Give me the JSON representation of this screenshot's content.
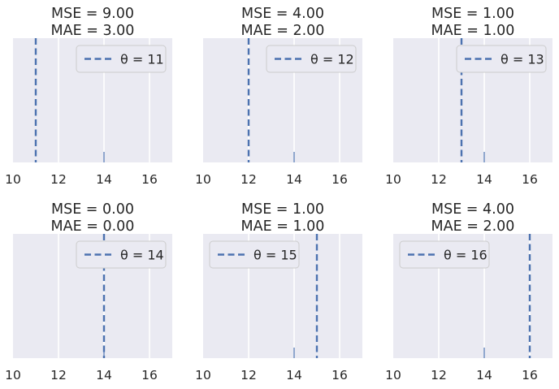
{
  "chart_data": [
    {
      "type": "line",
      "title_lines": [
        "MSE = 9.00",
        "MAE = 3.00"
      ],
      "theta": 11,
      "legend_label": "θ = 11",
      "legend_position": "top-right",
      "observation_x": 14,
      "xlim": [
        10,
        17
      ],
      "xticks": [
        "10",
        "12",
        "14",
        "16"
      ],
      "grid": true
    },
    {
      "type": "line",
      "title_lines": [
        "MSE = 4.00",
        "MAE = 2.00"
      ],
      "theta": 12,
      "legend_label": "θ = 12",
      "legend_position": "top-right",
      "observation_x": 14,
      "xlim": [
        10,
        17
      ],
      "xticks": [
        "10",
        "12",
        "14",
        "16"
      ],
      "grid": true
    },
    {
      "type": "line",
      "title_lines": [
        "MSE = 1.00",
        "MAE = 1.00"
      ],
      "theta": 13,
      "legend_label": "θ = 13",
      "legend_position": "top-right",
      "observation_x": 14,
      "xlim": [
        10,
        17
      ],
      "xticks": [
        "10",
        "12",
        "14",
        "16"
      ],
      "grid": true
    },
    {
      "type": "line",
      "title_lines": [
        "MSE = 0.00",
        "MAE = 0.00"
      ],
      "theta": 14,
      "legend_label": "θ = 14",
      "legend_position": "top-right",
      "observation_x": 14,
      "xlim": [
        10,
        17
      ],
      "xticks": [
        "10",
        "12",
        "14",
        "16"
      ],
      "grid": true
    },
    {
      "type": "line",
      "title_lines": [
        "MSE = 1.00",
        "MAE = 1.00"
      ],
      "theta": 15,
      "legend_label": "θ = 15",
      "legend_position": "top-left",
      "observation_x": 14,
      "xlim": [
        10,
        17
      ],
      "xticks": [
        "10",
        "12",
        "14",
        "16"
      ],
      "grid": true
    },
    {
      "type": "line",
      "title_lines": [
        "MSE = 4.00",
        "MAE = 2.00"
      ],
      "theta": 16,
      "legend_label": "θ = 16",
      "legend_position": "top-left",
      "observation_x": 14,
      "xlim": [
        10,
        17
      ],
      "xticks": [
        "10",
        "12",
        "14",
        "16"
      ],
      "grid": true
    }
  ],
  "colors": {
    "background": "#eaeaf2",
    "grid": "#ffffff",
    "theta_line": "#4c72b0",
    "observation": "#4c72b0",
    "text": "#262626",
    "legend_border": "#cccccc"
  }
}
